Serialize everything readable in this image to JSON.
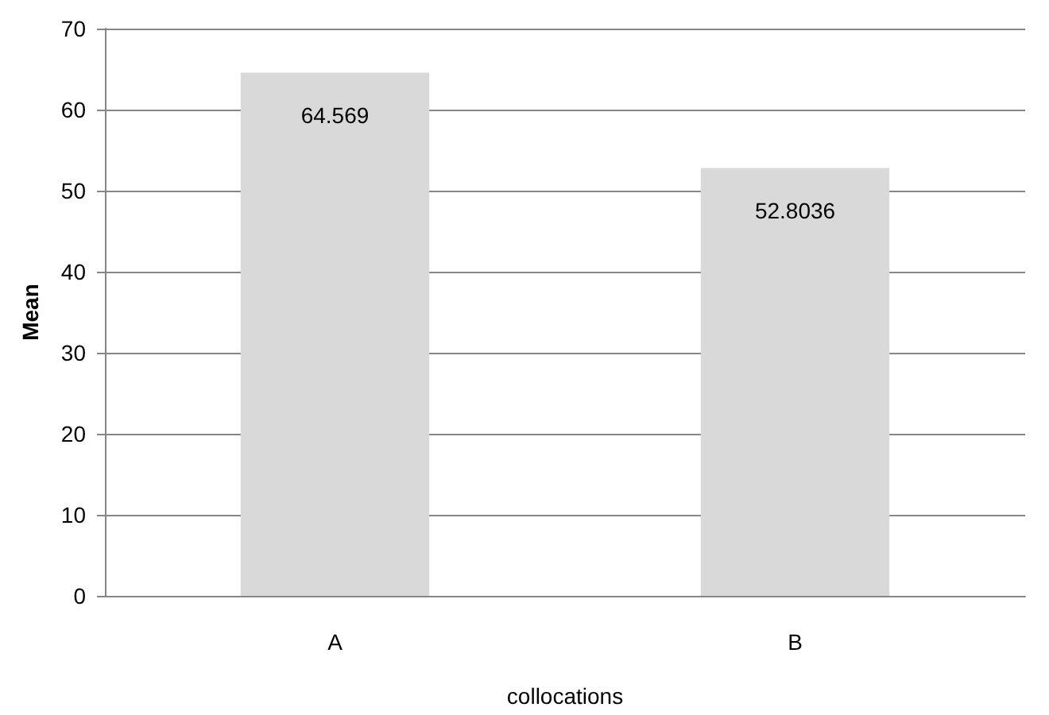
{
  "chart_data": {
    "type": "bar",
    "xlabel": "collocations",
    "ylabel": "Mean",
    "categories": [
      "A",
      "B"
    ],
    "values": [
      64.569,
      52.8036
    ],
    "color": "#d9d9d9",
    "ylim": [
      0,
      70
    ],
    "yticks": [
      0,
      10,
      20,
      30,
      40,
      50,
      60,
      70
    ],
    "grid": "y",
    "data_labels": true
  }
}
